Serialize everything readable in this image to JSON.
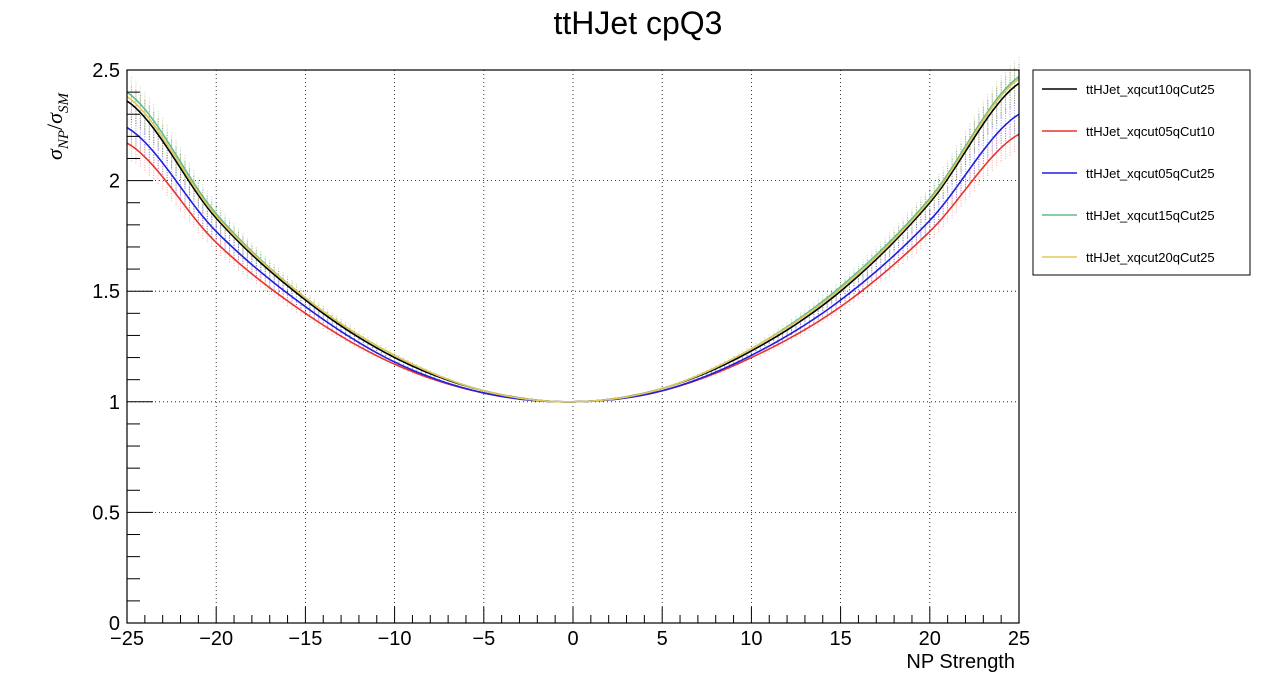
{
  "chart_data": {
    "type": "line",
    "title": "ttHJet cpQ3",
    "xlabel": "NP Strength",
    "ylabel": "σ_NP/σ_SM",
    "ylabel_parts": {
      "sigma": "σ",
      "num_sub": "NP",
      "slash": "/",
      "den_sub": "SM"
    },
    "xlim": [
      -25,
      25
    ],
    "ylim": [
      0,
      2.5
    ],
    "x_ticks": [
      -25,
      -20,
      -15,
      -10,
      -5,
      0,
      5,
      10,
      15,
      20,
      25
    ],
    "x_tick_labels": [
      "−25",
      "−20",
      "−15",
      "−10",
      "−5",
      "0",
      "5",
      "10",
      "15",
      "20",
      "25"
    ],
    "y_ticks": [
      0,
      0.5,
      1,
      1.5,
      2,
      2.5
    ],
    "y_tick_labels": [
      "0",
      "0.5",
      "1",
      "1.5",
      "2",
      "2.5"
    ],
    "grid": true,
    "legend_position": "right",
    "x": [
      -25,
      -20,
      -15,
      -10,
      -5,
      0,
      5,
      10,
      15,
      20,
      25
    ],
    "series": [
      {
        "name": "ttHJet_xqcut10qCut25",
        "color": "#000000",
        "values": [
          2.36,
          1.83,
          1.46,
          1.2,
          1.05,
          1.0,
          1.06,
          1.23,
          1.5,
          1.9,
          2.44
        ]
      },
      {
        "name": "ttHJet_xqcut05qCut10",
        "color": "#e8342e",
        "values": [
          2.17,
          1.72,
          1.4,
          1.17,
          1.04,
          1.0,
          1.05,
          1.2,
          1.43,
          1.77,
          2.21
        ]
      },
      {
        "name": "ttHJet_xqcut05qCut25",
        "color": "#1f1fe0",
        "values": [
          2.24,
          1.77,
          1.43,
          1.18,
          1.04,
          1.0,
          1.05,
          1.21,
          1.46,
          1.82,
          2.3
        ]
      },
      {
        "name": "ttHJet_xqcut15qCut25",
        "color": "#5fbd8e",
        "values": [
          2.4,
          1.85,
          1.47,
          1.21,
          1.05,
          1.0,
          1.06,
          1.24,
          1.52,
          1.92,
          2.47
        ]
      },
      {
        "name": "ttHJet_xqcut20qCut25",
        "color": "#e0c85a",
        "values": [
          2.38,
          1.84,
          1.47,
          1.21,
          1.05,
          1.0,
          1.06,
          1.24,
          1.51,
          1.91,
          2.46
        ]
      }
    ]
  }
}
